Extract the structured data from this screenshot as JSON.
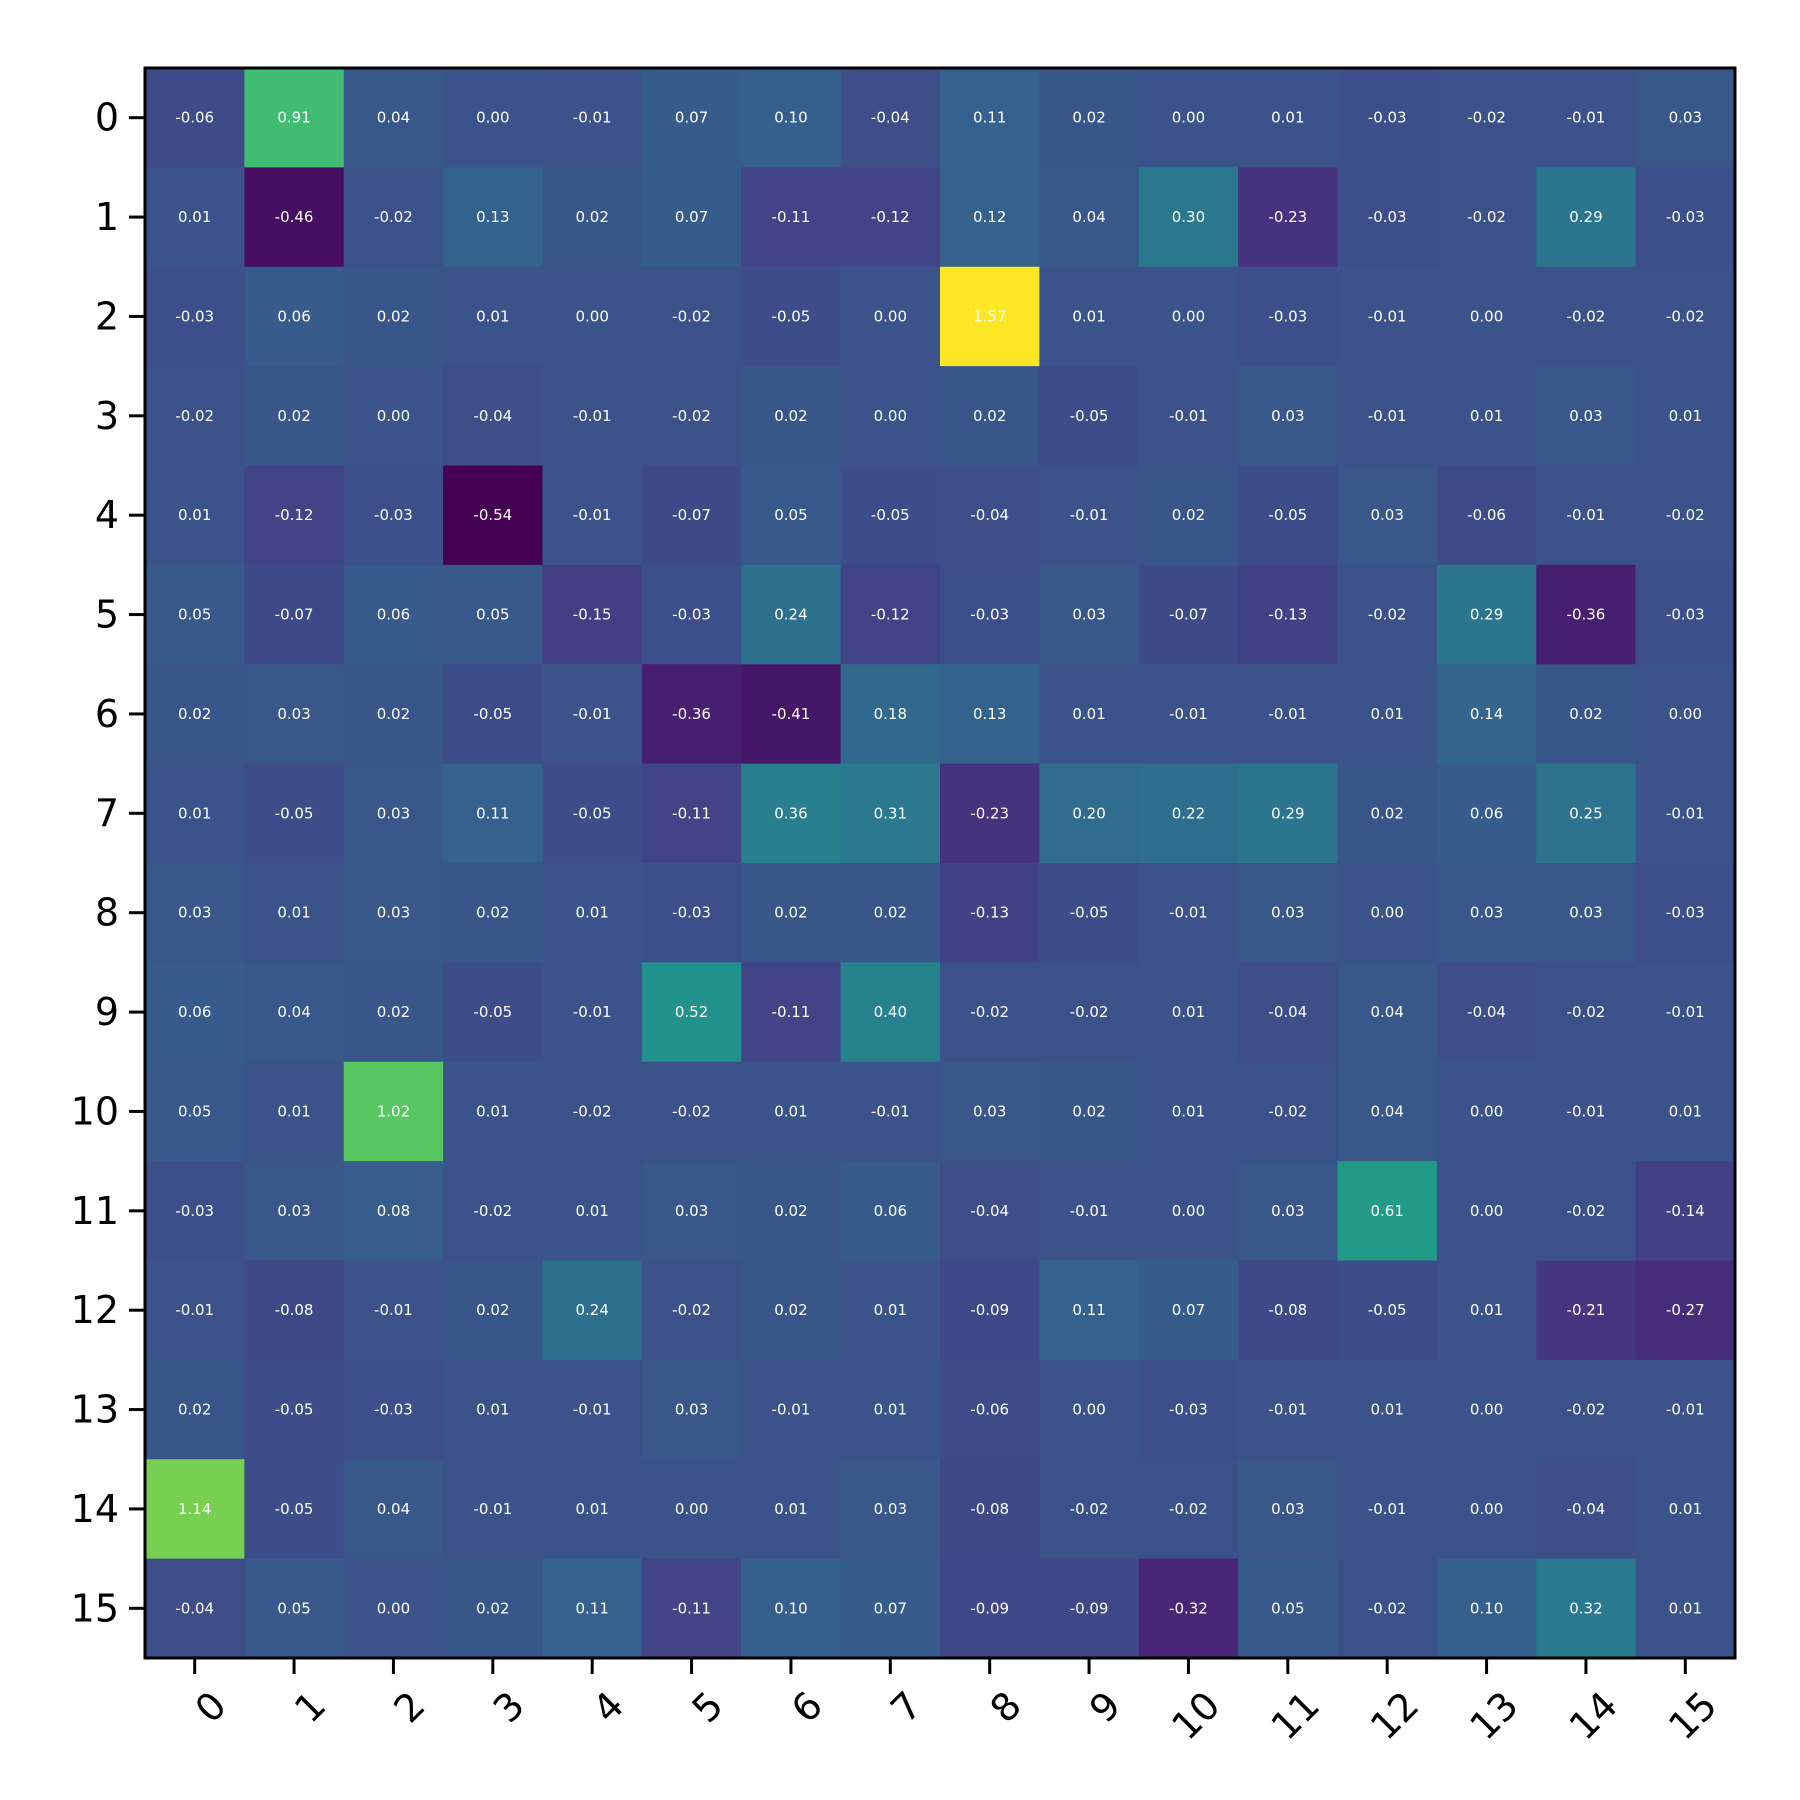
{
  "chart_data": {
    "type": "heatmap",
    "title": "",
    "xlabel": "",
    "ylabel": "",
    "x_categories": [
      "0",
      "1",
      "2",
      "3",
      "4",
      "5",
      "6",
      "7",
      "8",
      "9",
      "10",
      "11",
      "12",
      "13",
      "14",
      "15"
    ],
    "y_categories": [
      "0",
      "1",
      "2",
      "3",
      "4",
      "5",
      "6",
      "7",
      "8",
      "9",
      "10",
      "11",
      "12",
      "13",
      "14",
      "15"
    ],
    "colormap": "viridis",
    "value_range": [
      -0.54,
      1.57
    ],
    "grid": false,
    "values": [
      [
        -0.06,
        0.91,
        0.04,
        -0.0,
        -0.01,
        0.07,
        0.1,
        -0.04,
        0.11,
        0.02,
        -0.0,
        0.01,
        -0.03,
        -0.02,
        -0.01,
        0.03
      ],
      [
        0.01,
        -0.46,
        -0.02,
        0.13,
        0.02,
        0.07,
        -0.11,
        -0.12,
        0.12,
        0.04,
        0.3,
        -0.23,
        -0.03,
        -0.02,
        0.29,
        -0.03
      ],
      [
        -0.03,
        0.06,
        0.02,
        0.01,
        0.0,
        -0.02,
        -0.05,
        -0.0,
        1.57,
        0.01,
        0.0,
        -0.03,
        -0.01,
        -0.0,
        -0.02,
        -0.02
      ],
      [
        -0.02,
        0.02,
        -0.0,
        -0.04,
        -0.01,
        -0.02,
        0.02,
        -0.0,
        0.02,
        -0.05,
        -0.01,
        0.03,
        -0.01,
        0.01,
        0.03,
        0.01
      ],
      [
        0.01,
        -0.12,
        -0.03,
        -0.54,
        -0.01,
        -0.07,
        0.05,
        -0.05,
        -0.04,
        -0.01,
        0.02,
        -0.05,
        0.03,
        -0.06,
        -0.01,
        -0.02
      ],
      [
        0.05,
        -0.07,
        0.06,
        0.05,
        -0.15,
        -0.03,
        0.24,
        -0.12,
        -0.03,
        0.03,
        -0.07,
        -0.13,
        -0.02,
        0.29,
        -0.36,
        -0.03
      ],
      [
        0.02,
        0.03,
        0.02,
        -0.05,
        -0.01,
        -0.36,
        -0.41,
        0.18,
        0.13,
        0.01,
        -0.01,
        -0.01,
        0.01,
        0.14,
        0.02,
        -0.0
      ],
      [
        0.01,
        -0.05,
        0.03,
        0.11,
        -0.05,
        -0.11,
        0.36,
        0.31,
        -0.23,
        0.2,
        0.22,
        0.29,
        0.02,
        0.06,
        0.25,
        -0.01
      ],
      [
        0.03,
        0.01,
        0.03,
        0.02,
        0.01,
        -0.03,
        0.02,
        0.02,
        -0.13,
        -0.05,
        -0.01,
        0.03,
        0.0,
        0.03,
        0.03,
        -0.03
      ],
      [
        0.06,
        0.04,
        0.02,
        -0.05,
        -0.01,
        0.52,
        -0.11,
        0.4,
        -0.02,
        -0.02,
        0.01,
        -0.04,
        0.04,
        -0.04,
        -0.02,
        -0.01
      ],
      [
        0.05,
        0.01,
        1.02,
        0.01,
        -0.02,
        -0.02,
        0.01,
        -0.01,
        0.03,
        0.02,
        0.01,
        -0.02,
        0.04,
        0.0,
        -0.01,
        0.01
      ],
      [
        -0.03,
        0.03,
        0.08,
        -0.02,
        0.01,
        0.03,
        0.02,
        0.06,
        -0.04,
        -0.01,
        -0.0,
        0.03,
        0.61,
        -0.0,
        -0.02,
        -0.14
      ],
      [
        -0.01,
        -0.08,
        -0.01,
        0.02,
        0.24,
        -0.02,
        0.02,
        0.01,
        -0.09,
        0.11,
        0.07,
        -0.08,
        -0.05,
        0.01,
        -0.21,
        -0.27
      ],
      [
        0.02,
        -0.05,
        -0.03,
        0.01,
        -0.01,
        0.03,
        -0.01,
        0.01,
        -0.06,
        -0.0,
        -0.03,
        -0.01,
        0.01,
        0.0,
        -0.02,
        -0.01
      ],
      [
        1.14,
        -0.05,
        0.04,
        -0.01,
        0.01,
        -0.0,
        0.01,
        0.03,
        -0.08,
        -0.02,
        -0.02,
        0.03,
        -0.01,
        0.0,
        -0.04,
        0.01
      ],
      [
        -0.04,
        0.05,
        -0.0,
        0.02,
        0.11,
        -0.11,
        0.1,
        0.07,
        -0.09,
        -0.09,
        -0.32,
        0.05,
        -0.02,
        0.1,
        0.32,
        0.01
      ]
    ]
  }
}
